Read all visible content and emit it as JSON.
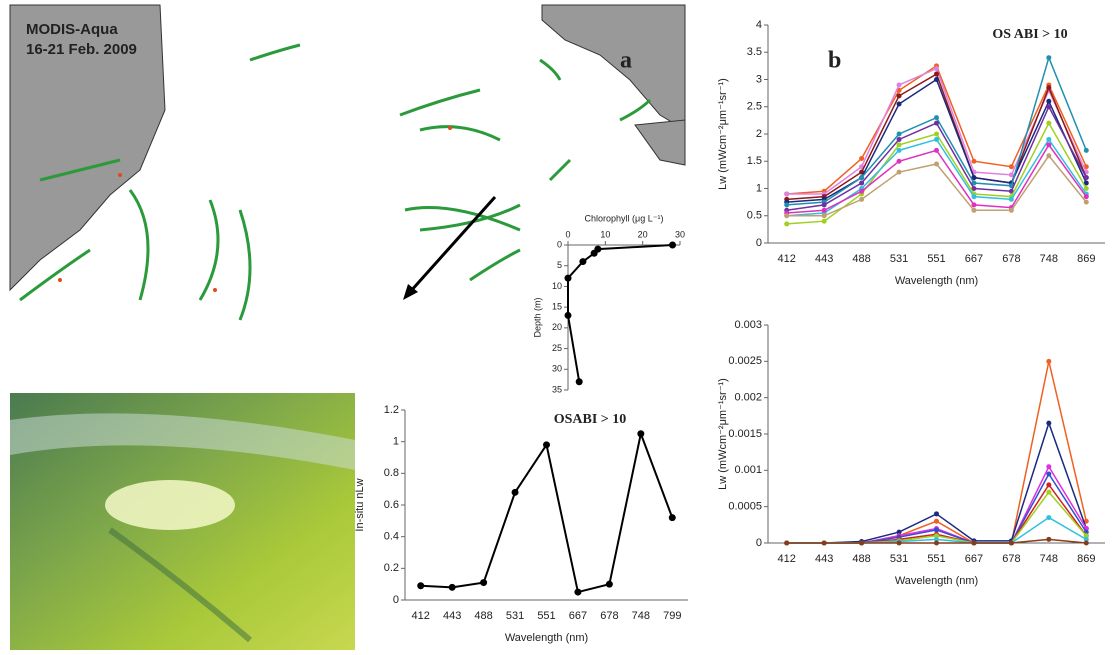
{
  "figure": {
    "map_label": "MODIS-Aqua",
    "map_date": "16-21 Feb. 2009",
    "panel_a": "a",
    "panel_b": "b"
  },
  "chart_data": [
    {
      "type": "line",
      "xlabel": "Chlorophyll (μg L⁻¹)",
      "ylabel": "Depth (m)",
      "x": [
        28,
        8,
        7,
        4,
        0,
        0,
        3
      ],
      "values": [
        0,
        1,
        2,
        4,
        8,
        17,
        33
      ],
      "color": "#000000",
      "xlim": [
        0,
        30
      ],
      "xticks": [
        0,
        10,
        20,
        30
      ],
      "ylim": [
        0,
        35
      ],
      "yticks": [
        0,
        5,
        10,
        15,
        20,
        25,
        30,
        35
      ],
      "y_inverted": true,
      "x_axis_top": true,
      "grid": false
    },
    {
      "type": "line",
      "annotation": "OSABI > 10",
      "xlabel": "Wavelength (nm)",
      "ylabel": "In-situ nLw",
      "categories": [
        "412",
        "443",
        "488",
        "531",
        "551",
        "667",
        "678",
        "748",
        "799"
      ],
      "values": [
        0.09,
        0.08,
        0.11,
        0.68,
        0.98,
        0.05,
        0.1,
        1.05,
        0.52
      ],
      "color": "#000000",
      "ylim": [
        0,
        1.2
      ],
      "yticks": [
        0,
        0.2,
        0.4,
        0.6,
        0.8,
        1,
        1.2
      ],
      "grid": false
    },
    {
      "type": "line",
      "annotation": "OS ABI > 10",
      "xlabel": "Wavelength (nm)",
      "ylabel": "Lw (mWcm⁻²μm⁻¹sr⁻¹)",
      "categories": [
        "412",
        "443",
        "488",
        "531",
        "551",
        "667",
        "678",
        "748",
        "869"
      ],
      "series": [
        {
          "color": "#f06020",
          "values": [
            0.9,
            0.95,
            1.55,
            2.8,
            3.25,
            1.5,
            1.4,
            2.9,
            1.4
          ]
        },
        {
          "color": "#e080e0",
          "values": [
            0.9,
            0.9,
            1.4,
            2.9,
            3.2,
            1.3,
            1.25,
            2.8,
            1.3
          ]
        },
        {
          "color": "#8b1a1a",
          "values": [
            0.8,
            0.85,
            1.3,
            2.7,
            3.1,
            1.2,
            1.1,
            2.85,
            1.2
          ]
        },
        {
          "color": "#1a2a80",
          "values": [
            0.75,
            0.8,
            1.2,
            2.55,
            3.0,
            1.2,
            1.1,
            2.6,
            1.1
          ]
        },
        {
          "color": "#2090b0",
          "values": [
            0.7,
            0.75,
            1.2,
            2.0,
            2.3,
            1.1,
            1.05,
            3.4,
            1.7
          ]
        },
        {
          "color": "#7030a0",
          "values": [
            0.6,
            0.7,
            1.1,
            1.9,
            2.2,
            1.0,
            0.95,
            2.5,
            1.2
          ]
        },
        {
          "color": "#a0d020",
          "values": [
            0.35,
            0.4,
            0.9,
            1.8,
            2.0,
            0.9,
            0.85,
            2.2,
            1.0
          ]
        },
        {
          "color": "#30c0e0",
          "values": [
            0.5,
            0.55,
            1.0,
            1.7,
            1.9,
            0.85,
            0.8,
            1.9,
            0.9
          ]
        },
        {
          "color": "#e030c0",
          "values": [
            0.55,
            0.6,
            0.95,
            1.5,
            1.7,
            0.7,
            0.65,
            1.8,
            0.85
          ]
        },
        {
          "color": "#c0a070",
          "values": [
            0.5,
            0.5,
            0.8,
            1.3,
            1.45,
            0.6,
            0.6,
            1.6,
            0.75
          ]
        }
      ],
      "ylim": [
        0,
        4
      ],
      "yticks": [
        0,
        0.5,
        1,
        1.5,
        2,
        2.5,
        3,
        3.5,
        4
      ],
      "grid": false
    },
    {
      "type": "line",
      "xlabel": "Wavelength (nm)",
      "ylabel": "Lw (mWcm⁻²μm⁻¹sr⁻¹)",
      "categories": [
        "412",
        "443",
        "488",
        "531",
        "551",
        "667",
        "678",
        "748",
        "869"
      ],
      "series": [
        {
          "color": "#f06020",
          "values": [
            0,
            0,
            0,
            0.0001,
            0.0003,
            0,
            0,
            0.0025,
            0.0003
          ]
        },
        {
          "color": "#1a2a80",
          "values": [
            0,
            0,
            2e-05,
            0.00015,
            0.0004,
            3e-05,
            3e-05,
            0.00165,
            0.0002
          ]
        },
        {
          "color": "#e030e0",
          "values": [
            0,
            0,
            0,
            0.0001,
            0.0002,
            0,
            0,
            0.00105,
            0.0002
          ]
        },
        {
          "color": "#3050d0",
          "values": [
            0,
            0,
            0,
            8e-05,
            0.00018,
            0,
            0,
            0.00095,
            0.00015
          ]
        },
        {
          "color": "#d02020",
          "values": [
            0,
            0,
            0,
            5e-05,
            0.00012,
            0,
            0,
            0.0008,
            0.0001
          ]
        },
        {
          "color": "#a0d020",
          "values": [
            0,
            0,
            0,
            3e-05,
            0.0001,
            0,
            0,
            0.0007,
            0.0001
          ]
        },
        {
          "color": "#30c0e0",
          "values": [
            0,
            0,
            0,
            2e-05,
            5e-05,
            0,
            0,
            0.00035,
            5e-05
          ]
        },
        {
          "color": "#8b3a1a",
          "values": [
            0,
            0,
            0,
            0,
            0,
            0,
            0,
            5e-05,
            0
          ]
        }
      ],
      "ylim": [
        0,
        0.003
      ],
      "yticks": [
        0,
        0.0005,
        0.001,
        0.0015,
        0.002,
        0.0025,
        0.003
      ],
      "grid": false
    }
  ]
}
